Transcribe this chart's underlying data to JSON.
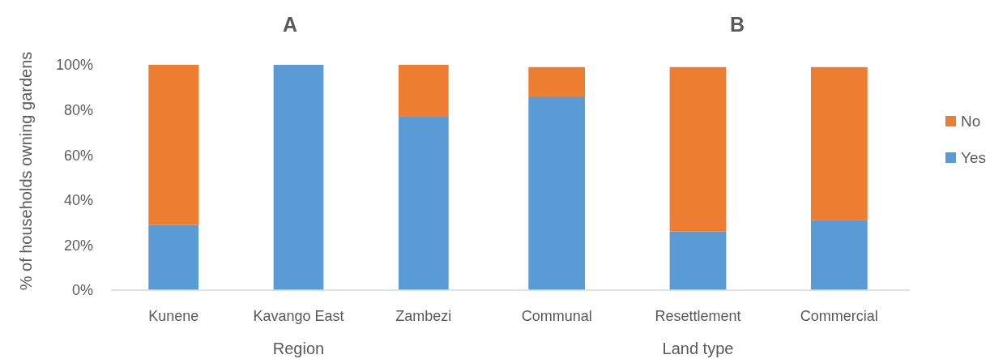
{
  "chart_data": [
    {
      "type": "bar",
      "title": "A",
      "xlabel": "Region",
      "ylabel": "% of households owning gardens",
      "categories": [
        "Kunene",
        "Kavango East",
        "Zambezi"
      ],
      "stacked": true,
      "series": [
        {
          "color": "#5b9bd5",
          "values": [
            29,
            100,
            77
          ]
        },
        {
          "color": "#ed7d31",
          "values": [
            71,
            0,
            23
          ]
        }
      ],
      "ylim": [
        0,
        100
      ],
      "yticks": [
        {
          "value": 0,
          "label": "0%"
        },
        {
          "value": 20,
          "label": "20%"
        },
        {
          "value": 40,
          "label": "40%"
        },
        {
          "value": 60,
          "label": "60%"
        },
        {
          "value": 80,
          "label": "80%"
        },
        {
          "value": 100,
          "label": "100%"
        }
      ]
    },
    {
      "type": "bar",
      "title": "B",
      "xlabel": "Land type",
      "categories": [
        "Communal",
        "Resettlement",
        "Commercial"
      ],
      "stacked": true,
      "series": [
        {
          "name": "Yes",
          "color": "#5b9bd5",
          "values": [
            86,
            26,
            31
          ]
        },
        {
          "name": "No",
          "color": "#ed7d31",
          "values": [
            13,
            73,
            68
          ]
        }
      ],
      "ylim": [
        0,
        100
      ],
      "tick_labels": "x",
      "legend": "right"
    }
  ]
}
